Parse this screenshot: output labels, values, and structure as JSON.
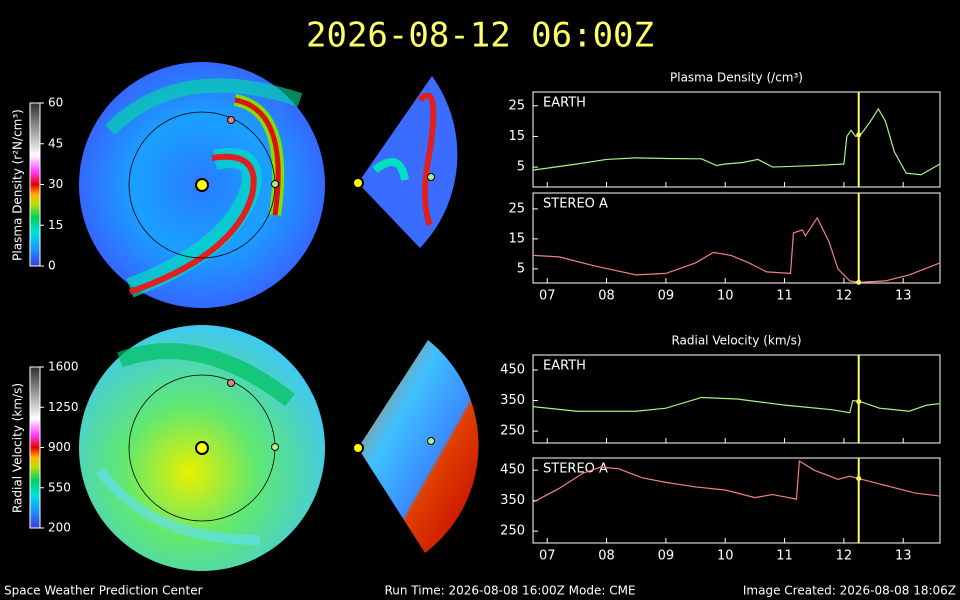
{
  "title": "2026-08-12 06:00Z",
  "current_time": 12.25,
  "footer": {
    "left": "Space Weather Prediction Center",
    "center": "Run Time: 2026-08-08 16:00Z  Mode: CME",
    "right": "Image Created: 2026-08-08 18:06Z"
  },
  "colorbars": [
    {
      "label": "Plasma Density (r²N/cm³)",
      "lim": [
        0,
        60
      ],
      "ticks": [
        0,
        15,
        30,
        45,
        60
      ]
    },
    {
      "label": "Radial Velocity (km/s)",
      "lim": [
        200,
        1600
      ],
      "ticks": [
        200,
        550,
        900,
        1250,
        1600
      ]
    }
  ],
  "chart_data": [
    {
      "type": "line",
      "title": "Plasma Density (/cm³)",
      "xlim": [
        6.76,
        13.62
      ],
      "ylim": [
        -1.5,
        29.5
      ],
      "yticks": [
        5,
        15,
        25
      ],
      "xtick_labels": false,
      "xticks": [
        {
          "value": 7,
          "label": "07"
        },
        {
          "value": 8,
          "label": "08"
        },
        {
          "value": 9,
          "label": "09"
        },
        {
          "value": 10,
          "label": "10"
        },
        {
          "value": 11,
          "label": "11"
        },
        {
          "value": 12,
          "label": "12"
        },
        {
          "value": 13,
          "label": "13"
        }
      ],
      "series": [
        {
          "name": "EARTH",
          "color": "#a6f58a",
          "x": [
            6.76,
            7.5,
            8,
            8.5,
            9,
            9.6,
            9.85,
            10,
            10.3,
            10.55,
            10.8,
            11.5,
            12,
            12.05,
            12.12,
            12.2,
            12.3,
            12.45,
            12.58,
            12.7,
            12.85,
            13.05,
            13.3,
            13.62
          ],
          "values": [
            4,
            6,
            7.5,
            8,
            7.8,
            7.7,
            5.5,
            6,
            6.5,
            7.5,
            5,
            5.5,
            6,
            15,
            17,
            15,
            16,
            20,
            24,
            20,
            10,
            3,
            2.5,
            6
          ]
        }
      ]
    },
    {
      "type": "line",
      "xlim": [
        6.76,
        13.62
      ],
      "ylim": [
        0.3,
        30.3
      ],
      "yticks": [
        5,
        15,
        25
      ],
      "xtick_labels": true,
      "xticks": [
        {
          "value": 7,
          "label": "07"
        },
        {
          "value": 8,
          "label": "08"
        },
        {
          "value": 9,
          "label": "09"
        },
        {
          "value": 10,
          "label": "10"
        },
        {
          "value": 11,
          "label": "11"
        },
        {
          "value": 12,
          "label": "12"
        },
        {
          "value": 13,
          "label": "13"
        }
      ],
      "series": [
        {
          "name": "STEREO A",
          "color": "#f08080",
          "x": [
            6.76,
            7.2,
            7.8,
            8.5,
            9,
            9.5,
            9.8,
            10.1,
            10.4,
            10.7,
            11.1,
            11.15,
            11.3,
            11.35,
            11.55,
            11.75,
            11.9,
            12.1,
            12.25,
            12.7,
            13.1,
            13.62
          ],
          "values": [
            9.5,
            9,
            6,
            3,
            3.5,
            7,
            10.5,
            9.5,
            7,
            4,
            3.5,
            17,
            18,
            16,
            22,
            14,
            5,
            1,
            0.5,
            1,
            3,
            7
          ]
        }
      ]
    },
    {
      "type": "line",
      "title": "Radial Velocity (km/s)",
      "xlim": [
        6.76,
        13.62
      ],
      "ylim": [
        211,
        499
      ],
      "yticks": [
        250,
        350,
        450
      ],
      "xtick_labels": false,
      "xticks": [
        {
          "value": 7,
          "label": "07"
        },
        {
          "value": 8,
          "label": "08"
        },
        {
          "value": 9,
          "label": "09"
        },
        {
          "value": 10,
          "label": "10"
        },
        {
          "value": 11,
          "label": "11"
        },
        {
          "value": 12,
          "label": "12"
        },
        {
          "value": 13,
          "label": "13"
        }
      ],
      "series": [
        {
          "name": "EARTH",
          "color": "#a6f58a",
          "x": [
            6.76,
            7.5,
            8.5,
            9,
            9.6,
            10.2,
            11,
            11.8,
            12.1,
            12.15,
            12.3,
            12.6,
            13.1,
            13.4,
            13.62
          ],
          "values": [
            330,
            315,
            315,
            325,
            360,
            355,
            335,
            320,
            310,
            350,
            345,
            325,
            315,
            335,
            340
          ]
        }
      ]
    },
    {
      "type": "line",
      "xlim": [
        6.76,
        13.62
      ],
      "ylim": [
        211,
        490
      ],
      "yticks": [
        250,
        350,
        450
      ],
      "xtick_labels": true,
      "xticks": [
        {
          "value": 7,
          "label": "07"
        },
        {
          "value": 8,
          "label": "08"
        },
        {
          "value": 9,
          "label": "09"
        },
        {
          "value": 10,
          "label": "10"
        },
        {
          "value": 11,
          "label": "11"
        },
        {
          "value": 12,
          "label": "12"
        },
        {
          "value": 13,
          "label": "13"
        }
      ],
      "series": [
        {
          "name": "STEREO A",
          "color": "#f08080",
          "x": [
            6.76,
            7.2,
            7.6,
            7.9,
            8.2,
            8.6,
            9,
            9.5,
            10,
            10.5,
            10.8,
            11.2,
            11.25,
            11.5,
            11.9,
            12.1,
            12.3,
            12.8,
            13.2,
            13.62
          ],
          "values": [
            345,
            390,
            440,
            460,
            455,
            425,
            410,
            395,
            385,
            360,
            370,
            355,
            480,
            450,
            420,
            430,
            420,
            395,
            375,
            365
          ]
        }
      ]
    }
  ]
}
